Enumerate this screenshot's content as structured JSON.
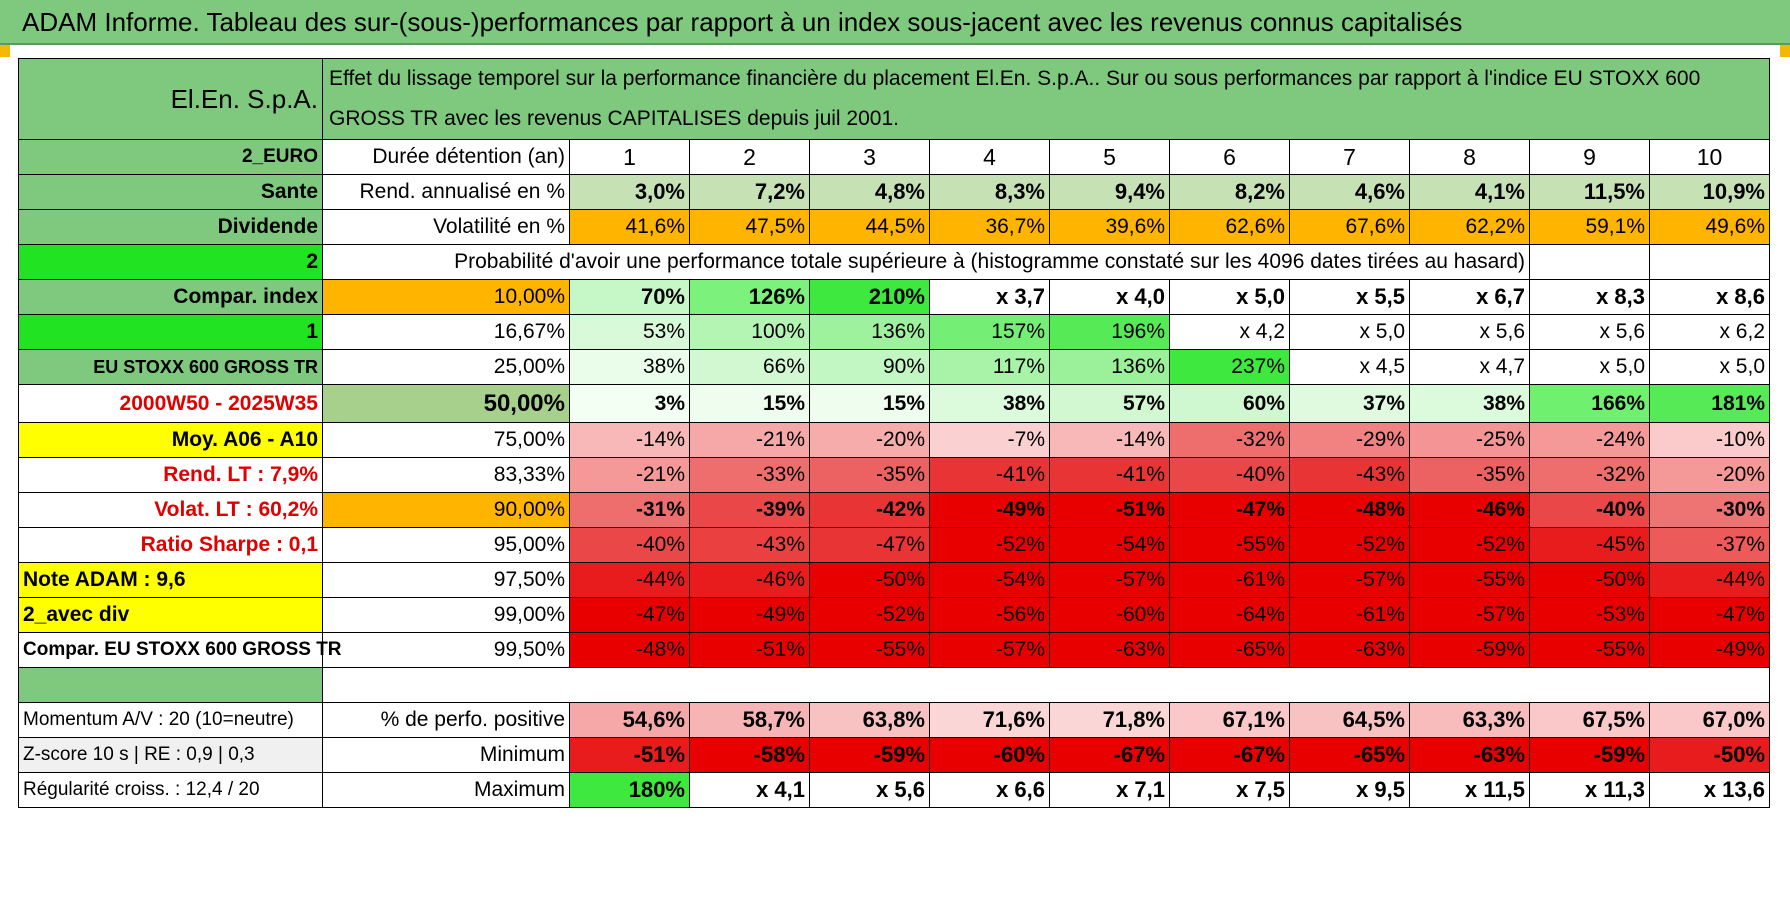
{
  "title": "ADAM Informe. Tableau des sur-(sous-)performances par rapport à un index sous-jacent avec les revenus connus capitalisés",
  "header": {
    "company": "El.En. S.p.A.",
    "description": "Effet du lissage temporel sur la performance financière du placement El.En. S.p.A.. Sur ou sous performances par rapport à l'indice EU STOXX 600 GROSS TR avec les revenus CAPITALISES depuis juil 2001."
  },
  "left_labels": {
    "currency": "2_EURO",
    "sector": "Sante",
    "dividend": "Dividende",
    "num2": "2",
    "compar_index": "Compar. index",
    "num1": "1",
    "index_name": "EU STOXX 600 GROSS TR",
    "period": "2000W50 - 2025W35",
    "moy": "Moy. A06 - A10",
    "rend_lt": "Rend. LT :    7,9%",
    "volat_lt": "Volat. LT :    60,2%",
    "sharpe": "Ratio Sharpe :    0,1",
    "note": "Note ADAM : 9,6",
    "avec_div": "2_avec div",
    "compar_full": "Compar. EU STOXX 600 GROSS TR",
    "momentum": "Momentum A/V : 20 (10=neutre)",
    "zscore": "Z-score 10 s | RE : 0,9 | 0,3",
    "regularite": "Régularité croiss. : 12,4 / 20"
  },
  "rows": {
    "duree": {
      "label": "Durée détention (an)",
      "values": [
        "1",
        "2",
        "3",
        "4",
        "5",
        "6",
        "7",
        "8",
        "9",
        "10"
      ]
    },
    "rend": {
      "label": "Rend. annualisé en %",
      "values": [
        "3,0%",
        "7,2%",
        "4,8%",
        "8,3%",
        "9,4%",
        "8,2%",
        "4,6%",
        "4,1%",
        "11,5%",
        "10,9%"
      ]
    },
    "vol": {
      "label": "Volatilité en %",
      "values": [
        "41,6%",
        "47,5%",
        "44,5%",
        "36,7%",
        "39,6%",
        "62,6%",
        "67,6%",
        "62,2%",
        "59,1%",
        "49,6%"
      ]
    },
    "proba_title": "Probabilité d'avoir une performance totale supérieure à (histogramme constaté sur les 4096 dates tirées au hasard)",
    "pct": [
      {
        "q": "10,00%",
        "values": [
          "70%",
          "126%",
          "210%",
          "x 3,7",
          "x 4,0",
          "x 5,0",
          "x 5,5",
          "x 6,7",
          "x 8,3",
          "x 8,6"
        ]
      },
      {
        "q": "16,67%",
        "values": [
          "53%",
          "100%",
          "136%",
          "157%",
          "196%",
          "x 4,2",
          "x 5,0",
          "x 5,6",
          "x 5,6",
          "x 6,2"
        ]
      },
      {
        "q": "25,00%",
        "values": [
          "38%",
          "66%",
          "90%",
          "117%",
          "136%",
          "237%",
          "x 4,5",
          "x 4,7",
          "x 5,0",
          "x 5,0"
        ]
      },
      {
        "q": "50,00%",
        "values": [
          "3%",
          "15%",
          "15%",
          "38%",
          "57%",
          "60%",
          "37%",
          "38%",
          "166%",
          "181%"
        ]
      },
      {
        "q": "75,00%",
        "values": [
          "-14%",
          "-21%",
          "-20%",
          "-7%",
          "-14%",
          "-32%",
          "-29%",
          "-25%",
          "-24%",
          "-10%"
        ]
      },
      {
        "q": "83,33%",
        "values": [
          "-21%",
          "-33%",
          "-35%",
          "-41%",
          "-41%",
          "-40%",
          "-43%",
          "-35%",
          "-32%",
          "-20%"
        ]
      },
      {
        "q": "90,00%",
        "values": [
          "-31%",
          "-39%",
          "-42%",
          "-49%",
          "-51%",
          "-47%",
          "-48%",
          "-46%",
          "-40%",
          "-30%"
        ]
      },
      {
        "q": "95,00%",
        "values": [
          "-40%",
          "-43%",
          "-47%",
          "-52%",
          "-54%",
          "-55%",
          "-52%",
          "-52%",
          "-45%",
          "-37%"
        ]
      },
      {
        "q": "97,50%",
        "values": [
          "-44%",
          "-46%",
          "-50%",
          "-54%",
          "-57%",
          "-61%",
          "-57%",
          "-55%",
          "-50%",
          "-44%"
        ]
      },
      {
        "q": "99,00%",
        "values": [
          "-47%",
          "-49%",
          "-52%",
          "-56%",
          "-60%",
          "-64%",
          "-61%",
          "-57%",
          "-53%",
          "-47%"
        ]
      },
      {
        "q": "99,50%",
        "values": [
          "-48%",
          "-51%",
          "-55%",
          "-57%",
          "-63%",
          "-65%",
          "-63%",
          "-59%",
          "-55%",
          "-49%"
        ]
      }
    ],
    "perfo_pos": {
      "label": "% de perfo. positive",
      "values": [
        "54,6%",
        "58,7%",
        "63,8%",
        "71,6%",
        "71,8%",
        "67,1%",
        "64,5%",
        "63,3%",
        "67,5%",
        "67,0%"
      ]
    },
    "minimum": {
      "label": "Minimum",
      "values": [
        "-51%",
        "-58%",
        "-59%",
        "-60%",
        "-67%",
        "-67%",
        "-65%",
        "-63%",
        "-59%",
        "-50%"
      ]
    },
    "maximum": {
      "label": "Maximum",
      "values": [
        "180%",
        "x 4,1",
        "x 5,6",
        "x 6,6",
        "x 7,1",
        "x 7,5",
        "x 9,5",
        "x 11,5",
        "x 11,3",
        "x 13,6"
      ]
    }
  },
  "colors": {
    "pct": [
      [
        "#c6f7c6",
        "#7cf27c",
        "#3ee83e",
        "#ffffff",
        "#ffffff",
        "#ffffff",
        "#ffffff",
        "#ffffff",
        "#ffffff",
        "#ffffff"
      ],
      [
        "#d8fad8",
        "#b4f5b4",
        "#9ef29e",
        "#74ee74",
        "#56ea56",
        "#ffffff",
        "#ffffff",
        "#ffffff",
        "#ffffff",
        "#ffffff"
      ],
      [
        "#eafcea",
        "#d2f8d2",
        "#c2f6c2",
        "#a8f3a8",
        "#9af19a",
        "#3ee83e",
        "#ffffff",
        "#ffffff",
        "#ffffff",
        "#ffffff"
      ],
      [
        "#f4fff4",
        "#eefdee",
        "#eefdee",
        "#dcfadc",
        "#d2f8d2",
        "#d0f8d0",
        "#e0fae0",
        "#dcfadc",
        "#6ff06f",
        "#56ea56"
      ],
      [
        "#f9b8b8",
        "#f6a8a8",
        "#f7acac",
        "#fbd0d0",
        "#f9b8b8",
        "#ee6e6e",
        "#f28282",
        "#f49494",
        "#f59898",
        "#fbcaca"
      ],
      [
        "#f59898",
        "#ee6e6e",
        "#ec6262",
        "#e83434",
        "#e83434",
        "#ea4848",
        "#e83434",
        "#ec6262",
        "#ee6e6e",
        "#f59898"
      ],
      [
        "#ee6e6e",
        "#ea4848",
        "#e83434",
        "#e80000",
        "#e80000",
        "#e80000",
        "#e80000",
        "#e80000",
        "#ea4848",
        "#ee7474"
      ],
      [
        "#ea4848",
        "#ea4040",
        "#e83434",
        "#e80000",
        "#e80000",
        "#e80000",
        "#e80000",
        "#e80000",
        "#e81c1c",
        "#ec5a5a"
      ],
      [
        "#e81c1c",
        "#e81c1c",
        "#e80000",
        "#e80000",
        "#e80000",
        "#e80000",
        "#e80000",
        "#e80000",
        "#e80000",
        "#e81c1c"
      ],
      [
        "#e80000",
        "#e80000",
        "#e80000",
        "#e80000",
        "#e80000",
        "#e80000",
        "#e80000",
        "#e80000",
        "#e80000",
        "#e80000"
      ],
      [
        "#e80000",
        "#e80000",
        "#e80000",
        "#e80000",
        "#e80000",
        "#e80000",
        "#e80000",
        "#e80000",
        "#e80000",
        "#e80000"
      ]
    ],
    "perfo_pos": [
      "#f6a8a8",
      "#f7b4b4",
      "#f9c2c2",
      "#fbd6d6",
      "#fbd6d6",
      "#fac8c8",
      "#f9c2c2",
      "#f8bcbc",
      "#fac8c8",
      "#fac8c8"
    ],
    "minimum": [
      "#e81c1c",
      "#e80000",
      "#e80000",
      "#e80000",
      "#e80000",
      "#e80000",
      "#e80000",
      "#e80000",
      "#e80000",
      "#e81c1c"
    ],
    "maximum": [
      "#3ee83e",
      "#ffffff",
      "#ffffff",
      "#ffffff",
      "#ffffff",
      "#ffffff",
      "#ffffff",
      "#ffffff",
      "#ffffff",
      "#ffffff"
    ],
    "rend": [
      "#c6e2b4",
      "#c6e2b4",
      "#c6e2b4",
      "#c6e2b4",
      "#c6e2b4",
      "#c6e2b4",
      "#c6e2b4",
      "#c6e2b4",
      "#c6e2b4",
      "#c6e2b4"
    ],
    "vol": "#ffb400"
  }
}
